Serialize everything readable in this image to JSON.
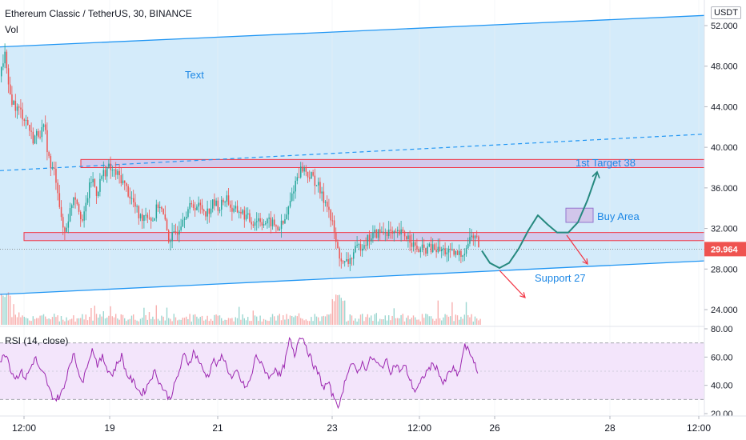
{
  "header": {
    "title": "Ethereum Classic / TetherUS, 30, BINANCE",
    "volume_label": "Vol",
    "currency": "USDT"
  },
  "annotations": {
    "channel_text": "Text",
    "target_label": "1st Target 38",
    "buy_area_label": "Buy Area",
    "support_label": "Support 27"
  },
  "colors": {
    "channel_fill": "#d4ebfa",
    "channel_line": "#2196f3",
    "zone_fill": "#d1c4e9",
    "zone_border": "#f23645",
    "up_candle": "#26a69a",
    "down_candle": "#ef5350",
    "projection": "#26897f",
    "arrow_red": "#f23645",
    "rsi_line": "#9c27b0",
    "rsi_band": "#f3e5fb",
    "price_tag": "#ef5350"
  },
  "chart_data": [
    {
      "type": "candlestick",
      "title": "Ethereum Classic / TetherUS, 30, BINANCE",
      "y_axis": {
        "ticks": [
          "52.000",
          "48.000",
          "44.000",
          "40.000",
          "36.000",
          "32.000",
          "28.000",
          "24.000"
        ],
        "range": [
          23.0,
          53.4
        ]
      },
      "x_axis": {
        "ticks": [
          "12:00",
          "19",
          "21",
          "23",
          "12:00",
          "26",
          "28",
          "12:00"
        ]
      },
      "last_price": "29.964",
      "close_path": [
        [
          0,
          47.0
        ],
        [
          5,
          49.5
        ],
        [
          10,
          45.5
        ],
        [
          18,
          44.0
        ],
        [
          25,
          43.5
        ],
        [
          33,
          42.5
        ],
        [
          40,
          40.8
        ],
        [
          48,
          41.5
        ],
        [
          55,
          41.8
        ],
        [
          62,
          38.0
        ],
        [
          68,
          37.5
        ],
        [
          72,
          35.6
        ],
        [
          76,
          32.5
        ],
        [
          80,
          31.6
        ],
        [
          86,
          33.5
        ],
        [
          92,
          35.6
        ],
        [
          98,
          34.0
        ],
        [
          103,
          32.5
        ],
        [
          108,
          35.0
        ],
        [
          114,
          37.0
        ],
        [
          120,
          35.5
        ],
        [
          127,
          37.3
        ],
        [
          134,
          38.0
        ],
        [
          142,
          37.5
        ],
        [
          150,
          37.0
        ],
        [
          158,
          35.8
        ],
        [
          166,
          34.5
        ],
        [
          174,
          33.0
        ],
        [
          182,
          33.6
        ],
        [
          190,
          32.8
        ],
        [
          198,
          34.6
        ],
        [
          204,
          33.0
        ],
        [
          210,
          31.0
        ],
        [
          216,
          31.2
        ],
        [
          222,
          32.0
        ],
        [
          228,
          33.3
        ],
        [
          234,
          33.9
        ],
        [
          242,
          34.3
        ],
        [
          250,
          34.1
        ],
        [
          258,
          33.6
        ],
        [
          266,
          34.5
        ],
        [
          274,
          34.1
        ],
        [
          282,
          35.2
        ],
        [
          290,
          33.6
        ],
        [
          298,
          33.8
        ],
        [
          306,
          33.2
        ],
        [
          314,
          32.6
        ],
        [
          322,
          33.0
        ],
        [
          330,
          32.5
        ],
        [
          338,
          32.6
        ],
        [
          346,
          32.0
        ],
        [
          354,
          32.5
        ],
        [
          360,
          34.0
        ],
        [
          366,
          36.0
        ],
        [
          372,
          37.5
        ],
        [
          378,
          38.0
        ],
        [
          384,
          37.3
        ],
        [
          390,
          37.0
        ],
        [
          396,
          36.3
        ],
        [
          402,
          35.0
        ],
        [
          408,
          34.6
        ],
        [
          412,
          33.0
        ],
        [
          416,
          32.0
        ],
        [
          420,
          30.0
        ],
        [
          424,
          29.3
        ],
        [
          428,
          28.3
        ],
        [
          432,
          28.6
        ],
        [
          436,
          28.8
        ],
        [
          440,
          29.5
        ],
        [
          446,
          30.0
        ],
        [
          452,
          30.5
        ],
        [
          460,
          31.0
        ],
        [
          468,
          31.5
        ],
        [
          476,
          31.6
        ],
        [
          484,
          31.8
        ],
        [
          490,
          31.2
        ],
        [
          498,
          31.5
        ],
        [
          506,
          31.3
        ],
        [
          512,
          31.0
        ],
        [
          518,
          30.0
        ],
        [
          524,
          29.8
        ],
        [
          532,
          30.0
        ],
        [
          540,
          30.0
        ],
        [
          548,
          29.8
        ],
        [
          556,
          29.8
        ],
        [
          562,
          29.5
        ],
        [
          570,
          29.4
        ],
        [
          576,
          29.5
        ],
        [
          582,
          30.2
        ],
        [
          588,
          31.3
        ],
        [
          594,
          31.0
        ],
        [
          598,
          30.2
        ]
      ],
      "projection_path": [
        [
          602,
          29.8
        ],
        [
          612,
          28.6
        ],
        [
          624,
          28.1
        ],
        [
          636,
          28.6
        ],
        [
          648,
          30.0
        ],
        [
          660,
          31.8
        ],
        [
          672,
          33.3
        ],
        [
          684,
          32.4
        ],
        [
          696,
          31.6
        ],
        [
          710,
          31.6
        ],
        [
          722,
          32.6
        ],
        [
          734,
          34.8
        ],
        [
          746,
          37.5
        ]
      ],
      "channel": {
        "upper": [
          [
            0,
            49.9
          ],
          [
            880,
            53.0
          ]
        ],
        "lower": [
          [
            0,
            25.5
          ],
          [
            880,
            28.8
          ]
        ],
        "midline": [
          [
            0,
            37.7
          ],
          [
            880,
            41.3
          ]
        ]
      },
      "zones": [
        {
          "name": "resistance",
          "x": [
            101,
            880
          ],
          "y": [
            38.0,
            38.8
          ]
        },
        {
          "name": "support",
          "x": [
            30,
            880
          ],
          "y": [
            30.8,
            31.6
          ]
        },
        {
          "name": "buy-area",
          "x": [
            707,
            741
          ],
          "y": [
            32.6,
            34.0
          ]
        }
      ]
    },
    {
      "type": "line",
      "title": "RSI (14, close)",
      "y_axis": {
        "ticks": [
          "80.00",
          "60.00",
          "40.00",
          "20.00"
        ],
        "range": [
          15,
          80
        ]
      },
      "bands": [
        30,
        70
      ],
      "rsi_path": [
        [
          0,
          57
        ],
        [
          8,
          63
        ],
        [
          14,
          50
        ],
        [
          20,
          45
        ],
        [
          26,
          50
        ],
        [
          32,
          45
        ],
        [
          38,
          52
        ],
        [
          44,
          60
        ],
        [
          50,
          50
        ],
        [
          56,
          47
        ],
        [
          62,
          36
        ],
        [
          68,
          30
        ],
        [
          74,
          32
        ],
        [
          80,
          38
        ],
        [
          86,
          54
        ],
        [
          92,
          62
        ],
        [
          98,
          50
        ],
        [
          104,
          42
        ],
        [
          110,
          58
        ],
        [
          116,
          66
        ],
        [
          122,
          54
        ],
        [
          128,
          60
        ],
        [
          134,
          52
        ],
        [
          140,
          47
        ],
        [
          146,
          55
        ],
        [
          152,
          61
        ],
        [
          158,
          48
        ],
        [
          164,
          44
        ],
        [
          170,
          40
        ],
        [
          176,
          34
        ],
        [
          182,
          37
        ],
        [
          188,
          45
        ],
        [
          194,
          50
        ],
        [
          200,
          41
        ],
        [
          206,
          36
        ],
        [
          212,
          30
        ],
        [
          218,
          40
        ],
        [
          224,
          50
        ],
        [
          230,
          62
        ],
        [
          236,
          55
        ],
        [
          242,
          64
        ],
        [
          248,
          58
        ],
        [
          254,
          50
        ],
        [
          260,
          46
        ],
        [
          266,
          58
        ],
        [
          272,
          54
        ],
        [
          278,
          62
        ],
        [
          284,
          52
        ],
        [
          290,
          44
        ],
        [
          296,
          50
        ],
        [
          302,
          42
        ],
        [
          308,
          38
        ],
        [
          314,
          46
        ],
        [
          320,
          62
        ],
        [
          326,
          55
        ],
        [
          332,
          50
        ],
        [
          338,
          45
        ],
        [
          344,
          53
        ],
        [
          350,
          46
        ],
        [
          356,
          56
        ],
        [
          362,
          73
        ],
        [
          368,
          60
        ],
        [
          374,
          76
        ],
        [
          380,
          72
        ],
        [
          386,
          62
        ],
        [
          392,
          54
        ],
        [
          398,
          48
        ],
        [
          404,
          38
        ],
        [
          410,
          42
        ],
        [
          416,
          32
        ],
        [
          420,
          30
        ],
        [
          424,
          24
        ],
        [
          428,
          36
        ],
        [
          434,
          50
        ],
        [
          440,
          56
        ],
        [
          446,
          48
        ],
        [
          452,
          56
        ],
        [
          458,
          52
        ],
        [
          464,
          60
        ],
        [
          470,
          56
        ],
        [
          476,
          52
        ],
        [
          482,
          58
        ],
        [
          488,
          50
        ],
        [
          494,
          55
        ],
        [
          500,
          50
        ],
        [
          506,
          54
        ],
        [
          512,
          44
        ],
        [
          518,
          36
        ],
        [
          524,
          40
        ],
        [
          530,
          47
        ],
        [
          536,
          52
        ],
        [
          542,
          55
        ],
        [
          548,
          50
        ],
        [
          554,
          40
        ],
        [
          560,
          48
        ],
        [
          566,
          52
        ],
        [
          572,
          46
        ],
        [
          576,
          55
        ],
        [
          580,
          68
        ],
        [
          586,
          64
        ],
        [
          592,
          58
        ],
        [
          598,
          43
        ]
      ]
    }
  ]
}
